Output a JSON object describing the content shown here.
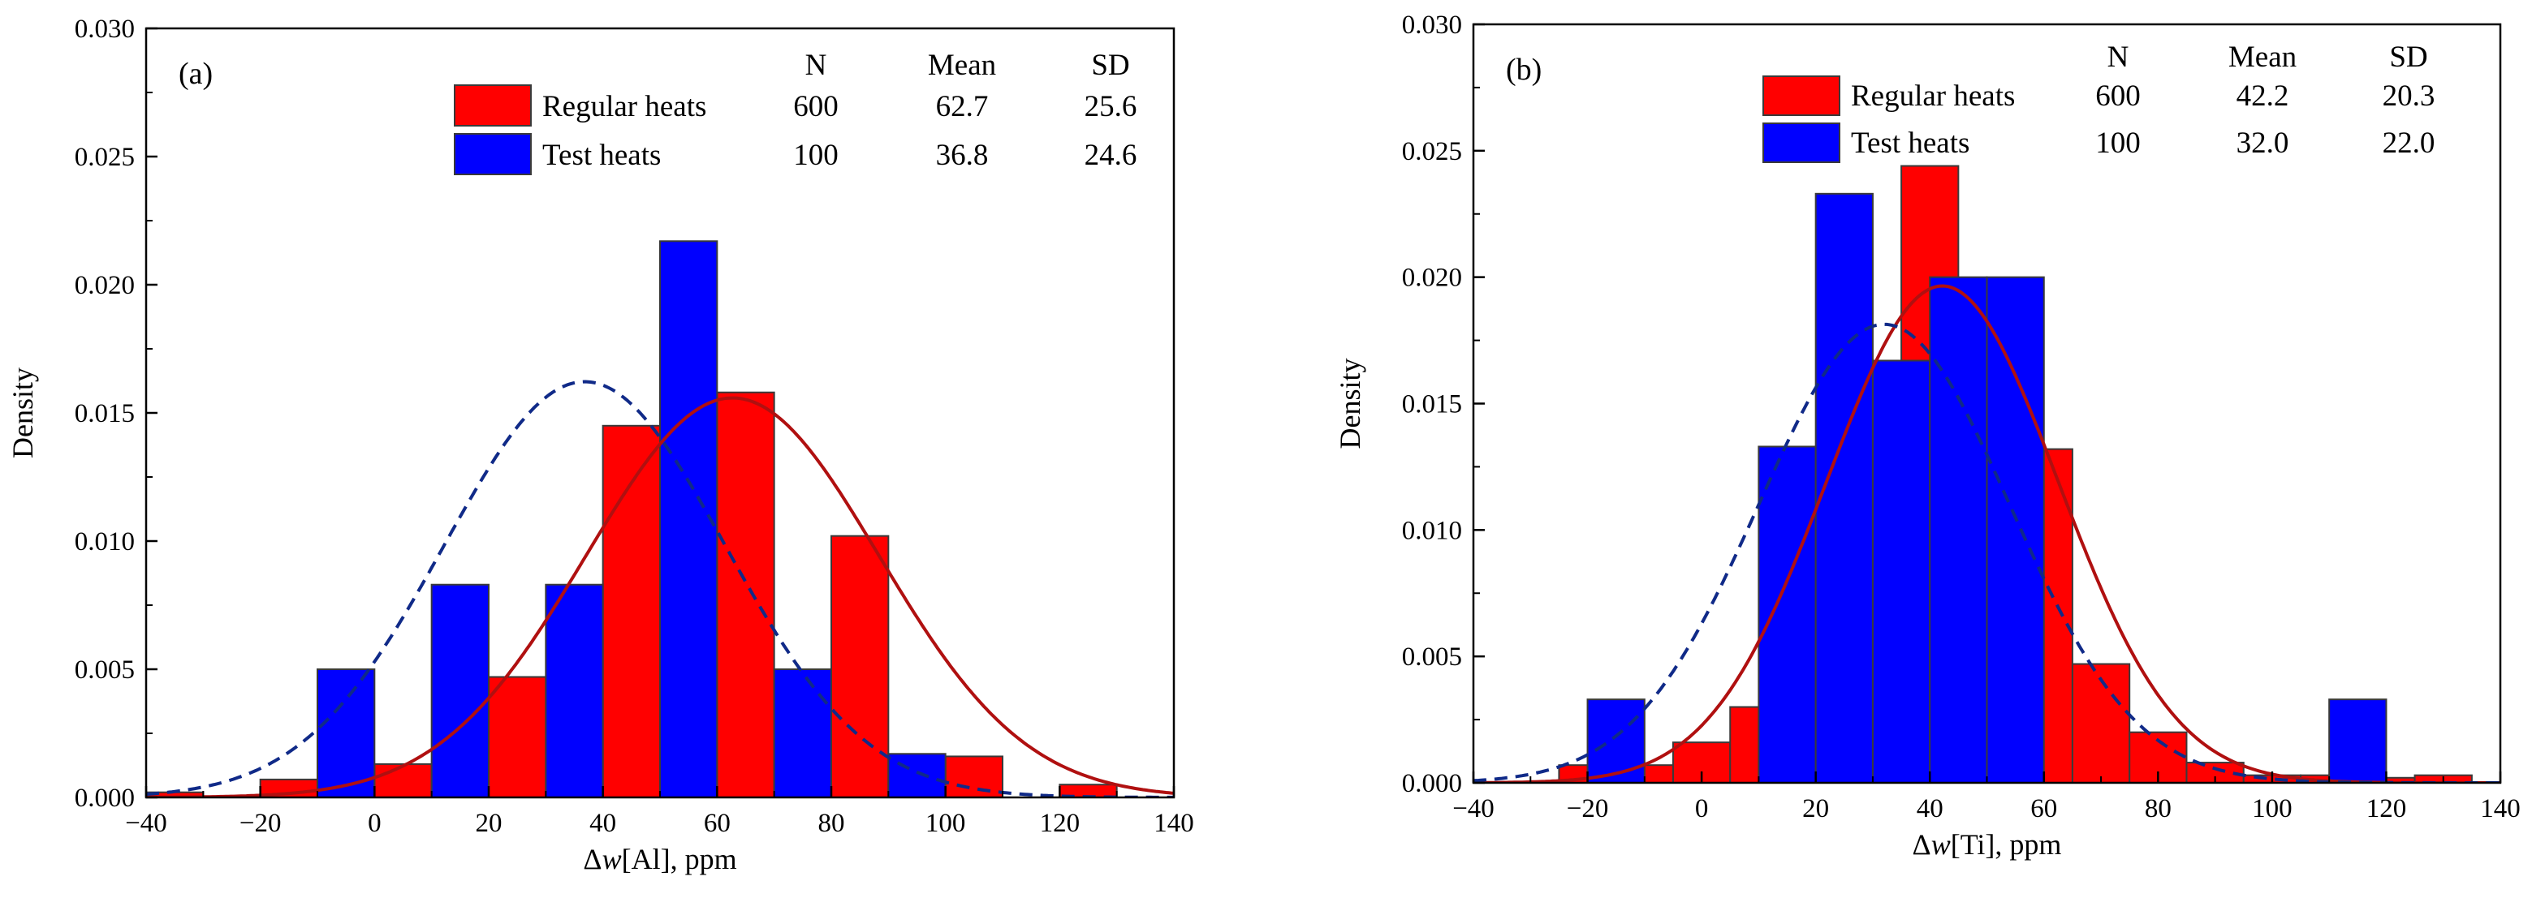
{
  "chart_data": [
    {
      "type": "bar",
      "panel_label": "(a)",
      "xlabel_prefix": "Δ",
      "xlabel_var": "w",
      "xlabel_suffix": "[Al], ppm",
      "ylabel": "Density",
      "xlim": [
        -40,
        140
      ],
      "ylim": [
        0,
        0.03
      ],
      "xticks": [
        "−40",
        "−20",
        "0",
        "20",
        "40",
        "60",
        "80",
        "100",
        "120",
        "140"
      ],
      "xtick_values": [
        -40,
        -20,
        0,
        20,
        40,
        60,
        80,
        100,
        120,
        140
      ],
      "yticks": [
        "0.000",
        "0.005",
        "0.010",
        "0.015",
        "0.020",
        "0.025",
        "0.030"
      ],
      "ytick_values": [
        0,
        0.005,
        0.01,
        0.015,
        0.02,
        0.025,
        0.03
      ],
      "grid": false,
      "legend_position": "top-right",
      "table_headers": [
        "N",
        "Mean",
        "SD"
      ],
      "series": [
        {
          "name": "Regular heats",
          "color": "#ff0000",
          "N": "600",
          "Mean": "62.7",
          "SD": "25.6",
          "mean": 62.7,
          "sd": 25.6,
          "curve": "solid",
          "curve_color": "#b01010",
          "bins": [
            [
              -40,
              -30,
              0.0002
            ],
            [
              -20,
              -10,
              0.0007
            ],
            [
              0,
              10,
              0.0013
            ],
            [
              20,
              30,
              0.0047
            ],
            [
              40,
              50,
              0.0145
            ],
            [
              60,
              70,
              0.0158
            ],
            [
              80,
              90,
              0.0102
            ],
            [
              100,
              110,
              0.0016
            ],
            [
              120,
              130,
              0.0005
            ]
          ]
        },
        {
          "name": "Test heats",
          "color": "#0000ff",
          "N": "100",
          "Mean": "36.8",
          "SD": "24.6",
          "mean": 36.8,
          "sd": 24.6,
          "curve": "dashed",
          "curve_color": "#102a88",
          "bins": [
            [
              -10,
              0,
              0.005
            ],
            [
              10,
              20,
              0.0083
            ],
            [
              30,
              40,
              0.0083
            ],
            [
              50,
              60,
              0.0217
            ],
            [
              70,
              80,
              0.005
            ],
            [
              90,
              100,
              0.0017
            ]
          ]
        }
      ]
    },
    {
      "type": "bar",
      "panel_label": "(b)",
      "xlabel_prefix": "Δ",
      "xlabel_var": "w",
      "xlabel_suffix": "[Ti], ppm",
      "ylabel": "Density",
      "xlim": [
        -40,
        140
      ],
      "ylim": [
        0,
        0.03
      ],
      "xticks": [
        "−40",
        "−20",
        "0",
        "20",
        "40",
        "60",
        "80",
        "100",
        "120",
        "140"
      ],
      "xtick_values": [
        -40,
        -20,
        0,
        20,
        40,
        60,
        80,
        100,
        120,
        140
      ],
      "yticks": [
        "0.000",
        "0.005",
        "0.010",
        "0.015",
        "0.020",
        "0.025",
        "0.030"
      ],
      "ytick_values": [
        0,
        0.005,
        0.01,
        0.015,
        0.02,
        0.025,
        0.03
      ],
      "grid": false,
      "legend_position": "top-right",
      "table_headers": [
        "N",
        "Mean",
        "SD"
      ],
      "series": [
        {
          "name": "Regular heats",
          "color": "#ff0000",
          "N": "600",
          "Mean": "42.2",
          "SD": "20.3",
          "mean": 42.2,
          "sd": 20.3,
          "curve": "solid",
          "curve_color": "#b01010",
          "bins": [
            [
              -25,
              -15,
              0.0007
            ],
            [
              -15,
              -5,
              0.0007
            ],
            [
              -5,
              5,
              0.0016
            ],
            [
              5,
              15,
              0.003
            ],
            [
              15,
              25,
              0.0115
            ],
            [
              25,
              35,
              0.0167
            ],
            [
              35,
              45,
              0.0244
            ],
            [
              45,
              55,
              0.0192
            ],
            [
              55,
              65,
              0.0132
            ],
            [
              65,
              75,
              0.0047
            ],
            [
              75,
              85,
              0.002
            ],
            [
              85,
              95,
              0.0008
            ],
            [
              95,
              105,
              0.0003
            ],
            [
              105,
              115,
              0.0003
            ],
            [
              115,
              125,
              0.0002
            ],
            [
              125,
              135,
              0.0003
            ]
          ]
        },
        {
          "name": "Test heats",
          "color": "#0000ff",
          "N": "100",
          "Mean": "32.0",
          "SD": "22.0",
          "mean": 32.0,
          "sd": 22.0,
          "curve": "dashed",
          "curve_color": "#102a88",
          "bins": [
            [
              -20,
              -10,
              0.0033
            ],
            [
              10,
              20,
              0.0133
            ],
            [
              20,
              30,
              0.0233
            ],
            [
              30,
              40,
              0.0167
            ],
            [
              40,
              50,
              0.02
            ],
            [
              50,
              60,
              0.02
            ],
            [
              110,
              120,
              0.0033
            ]
          ]
        }
      ]
    }
  ]
}
